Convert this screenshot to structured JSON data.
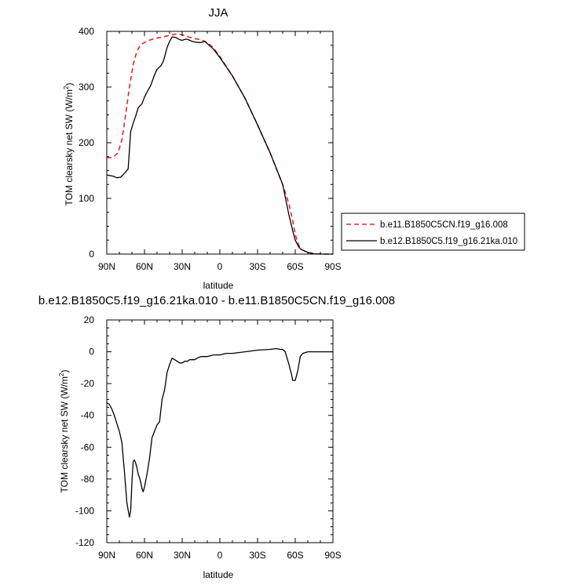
{
  "chart_data": [
    {
      "type": "line",
      "title": "JJA",
      "xlabel": "latitude",
      "ylabel": "TOM clearsky net SW (W/m",
      "ylabel_sup": "2",
      "ylabel_close": ")",
      "x_ticks": [
        "90N",
        "60N",
        "30N",
        "0",
        "30S",
        "60S",
        "90S"
      ],
      "y_ticks": [
        "0",
        "100",
        "200",
        "300",
        "400"
      ],
      "xlim": [
        90,
        -90
      ],
      "ylim": [
        0,
        400
      ],
      "grid": false,
      "legend_position": "right",
      "series": [
        {
          "name": "b.e11.B1850C5CN.f19_g16.008",
          "color": "#e8232a",
          "style": "dashed",
          "x": [
            90,
            85,
            81,
            78,
            75,
            72,
            69,
            66,
            63,
            60,
            55,
            50,
            45,
            40,
            35,
            30,
            25,
            20,
            15,
            10,
            5,
            0,
            -10,
            -20,
            -30,
            -40,
            -50,
            -55,
            -58,
            -60,
            -63,
            -65,
            -70,
            -75,
            -80,
            -85,
            -90
          ],
          "y": [
            173,
            174,
            182,
            205,
            250,
            300,
            340,
            365,
            376,
            380,
            385,
            388,
            390,
            393,
            395,
            394,
            390,
            387,
            385,
            380,
            370,
            355,
            320,
            280,
            232,
            182,
            125,
            90,
            60,
            35,
            15,
            8,
            3,
            0.5,
            0,
            0,
            0
          ]
        },
        {
          "name": "b.e12.B1850C5.f19_g16.21ka.010",
          "color": "#000000",
          "style": "solid",
          "x": [
            90,
            85,
            82,
            79,
            76,
            73,
            71,
            69,
            67,
            65,
            62,
            60,
            58,
            55,
            52,
            50,
            47,
            45,
            42,
            40,
            38,
            35,
            32,
            30,
            27,
            25,
            22,
            20,
            17,
            15,
            12,
            10,
            5,
            0,
            -10,
            -20,
            -30,
            -40,
            -50,
            -55,
            -58,
            -60,
            -63,
            -65,
            -70,
            -75,
            -80,
            -85,
            -90
          ],
          "y": [
            142,
            140,
            137,
            138,
            145,
            153,
            220,
            235,
            248,
            263,
            270,
            282,
            291,
            303,
            322,
            332,
            338,
            346,
            371,
            382,
            390,
            389,
            385,
            384,
            386,
            385,
            382,
            381,
            380,
            380,
            382,
            378,
            368,
            353,
            320,
            280,
            232,
            182,
            125,
            70,
            42,
            25,
            12,
            8,
            3,
            0.5,
            0,
            0,
            0
          ]
        }
      ]
    },
    {
      "type": "line",
      "title": "b.e12.B1850C5.f19_g16.21ka.010 - b.e11.B1850C5CN.f19_g16.008",
      "xlabel": "latitude",
      "ylabel": "TOM clearsky net SW (W/m",
      "ylabel_sup": "2",
      "ylabel_close": ")",
      "x_ticks": [
        "90N",
        "60N",
        "30N",
        "0",
        "30S",
        "60S",
        "90S"
      ],
      "y_ticks": [
        "-120",
        "-100",
        "-80",
        "-60",
        "-40",
        "-20",
        "0",
        "20"
      ],
      "xlim": [
        90,
        -90
      ],
      "ylim": [
        -120,
        20
      ],
      "grid": false,
      "series": [
        {
          "color": "#000000",
          "style": "solid",
          "x": [
            90,
            88,
            86,
            84,
            82,
            80,
            78,
            76,
            74,
            72,
            71,
            70,
            69,
            68,
            67,
            66,
            65,
            64,
            63,
            62,
            61,
            60,
            58,
            56,
            54,
            52,
            50,
            48,
            46,
            44,
            42,
            40,
            38,
            36,
            34,
            32,
            30,
            28,
            26,
            24,
            22,
            20,
            18,
            15,
            12,
            10,
            5,
            0,
            -5,
            -10,
            -20,
            -30,
            -40,
            -45,
            -48,
            -50,
            -52,
            -55,
            -57,
            -58,
            -60,
            -62,
            -64,
            -66,
            -70,
            -80,
            -90
          ],
          "y": [
            -32,
            -33,
            -36,
            -40,
            -45,
            -50,
            -57,
            -75,
            -95,
            -104,
            -100,
            -82,
            -69,
            -68,
            -70,
            -73,
            -77,
            -79,
            -82,
            -86,
            -88,
            -85,
            -77,
            -67,
            -54,
            -50,
            -46,
            -44,
            -30,
            -24,
            -13,
            -8,
            -4,
            -5,
            -6,
            -7,
            -7,
            -6,
            -6,
            -5,
            -5,
            -5,
            -4,
            -3,
            -3,
            -3,
            -2,
            -2,
            -1,
            -1,
            0,
            1,
            1.5,
            2,
            1.5,
            1.5,
            0,
            -8,
            -14,
            -18,
            -18,
            -12,
            -3,
            -1,
            0,
            0,
            0
          ]
        }
      ]
    }
  ]
}
